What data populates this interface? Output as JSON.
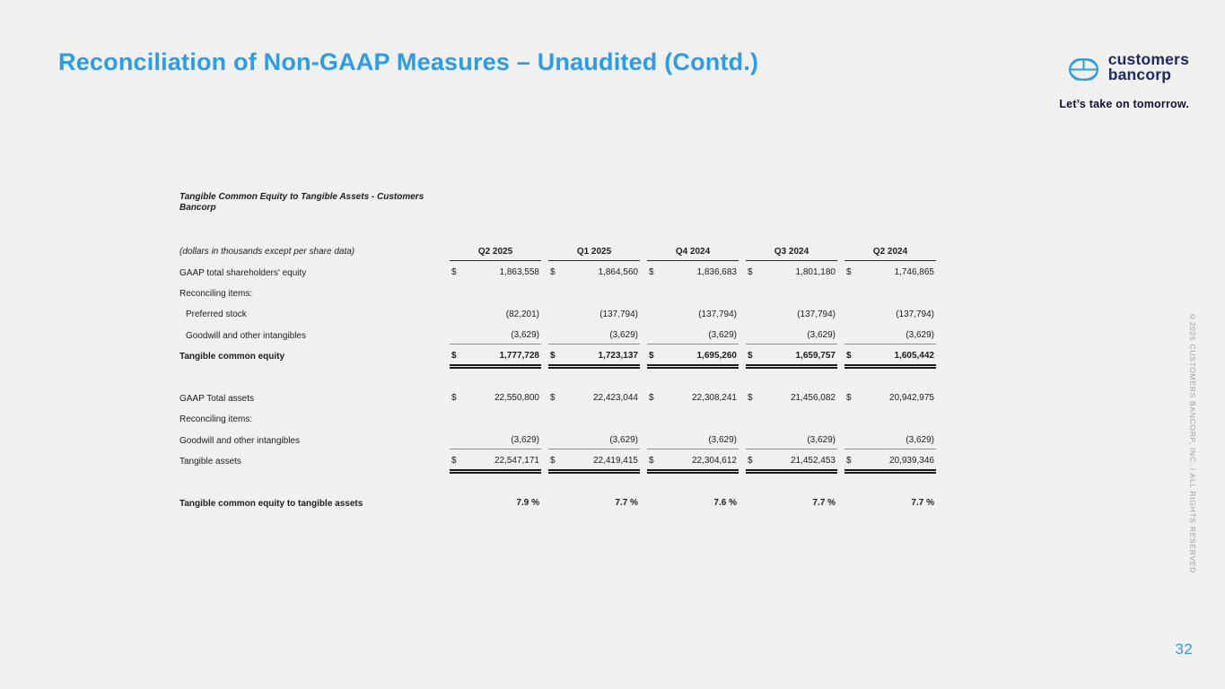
{
  "slide": {
    "title": "Reconciliation of Non-GAAP Measures – Unaudited (Contd.)",
    "page_number": "32",
    "copyright": "©2025 CUSTOMERS BANCORP, INC. / ALL RIGHTS RESERVED",
    "colors": {
      "accent_blue": "#2B9CE9",
      "brand_navy": "#1E2A64",
      "background": "#F0F0EE",
      "body_text": "#1D1D1B"
    }
  },
  "brand": {
    "name_line1": "customers",
    "name_line2": "bancorp",
    "tagline": "Let’s take on tomorrow.",
    "logo_icon": "customers-bancorp-mark"
  },
  "table": {
    "title": "Tangible Common Equity to Tangible Assets - Customers Bancorp",
    "note": "(dollars in thousands except per share data)",
    "currency_symbol": "$",
    "columns": [
      "Q2 2025",
      "Q1 2025",
      "Q4 2024",
      "Q3 2024",
      "Q2 2024"
    ],
    "rows": [
      {
        "label": "GAAP total shareholders' equity",
        "dollar": true,
        "values": [
          "1,863,558",
          "1,864,560",
          "1,836,683",
          "1,801,180",
          "1,746,865"
        ]
      },
      {
        "label": "Reconciling items:"
      },
      {
        "label": "Preferred stock",
        "indent": true,
        "values": [
          "(82,201)",
          "(137,794)",
          "(137,794)",
          "(137,794)",
          "(137,794)"
        ]
      },
      {
        "label": "Goodwill and other intangibles",
        "indent": true,
        "rule": "single",
        "values": [
          "(3,629)",
          "(3,629)",
          "(3,629)",
          "(3,629)",
          "(3,629)"
        ]
      },
      {
        "label": "Tangible common equity",
        "bold": true,
        "dollar": true,
        "rule": "double",
        "values": [
          "1,777,728",
          "1,723,137",
          "1,695,260",
          "1,659,757",
          "1,605,442"
        ]
      },
      {
        "blank": true
      },
      {
        "label": "GAAP Total assets",
        "dollar": true,
        "values": [
          "22,550,800",
          "22,423,044",
          "22,308,241",
          "21,456,082",
          "20,942,975"
        ]
      },
      {
        "label": "Reconciling items:"
      },
      {
        "label": "Goodwill and other intangibles",
        "rule": "single",
        "values": [
          "(3,629)",
          "(3,629)",
          "(3,629)",
          "(3,629)",
          "(3,629)"
        ]
      },
      {
        "label": "Tangible assets",
        "dollar": true,
        "rule": "double",
        "values": [
          "22,547,171",
          "22,419,415",
          "22,304,612",
          "21,452,453",
          "20,939,346"
        ]
      },
      {
        "blank": true
      },
      {
        "label": "Tangible common equity to tangible assets",
        "bold": true,
        "values": [
          "7.9 %",
          "7.7 %",
          "7.6 %",
          "7.7 %",
          "7.7 %"
        ]
      }
    ]
  }
}
